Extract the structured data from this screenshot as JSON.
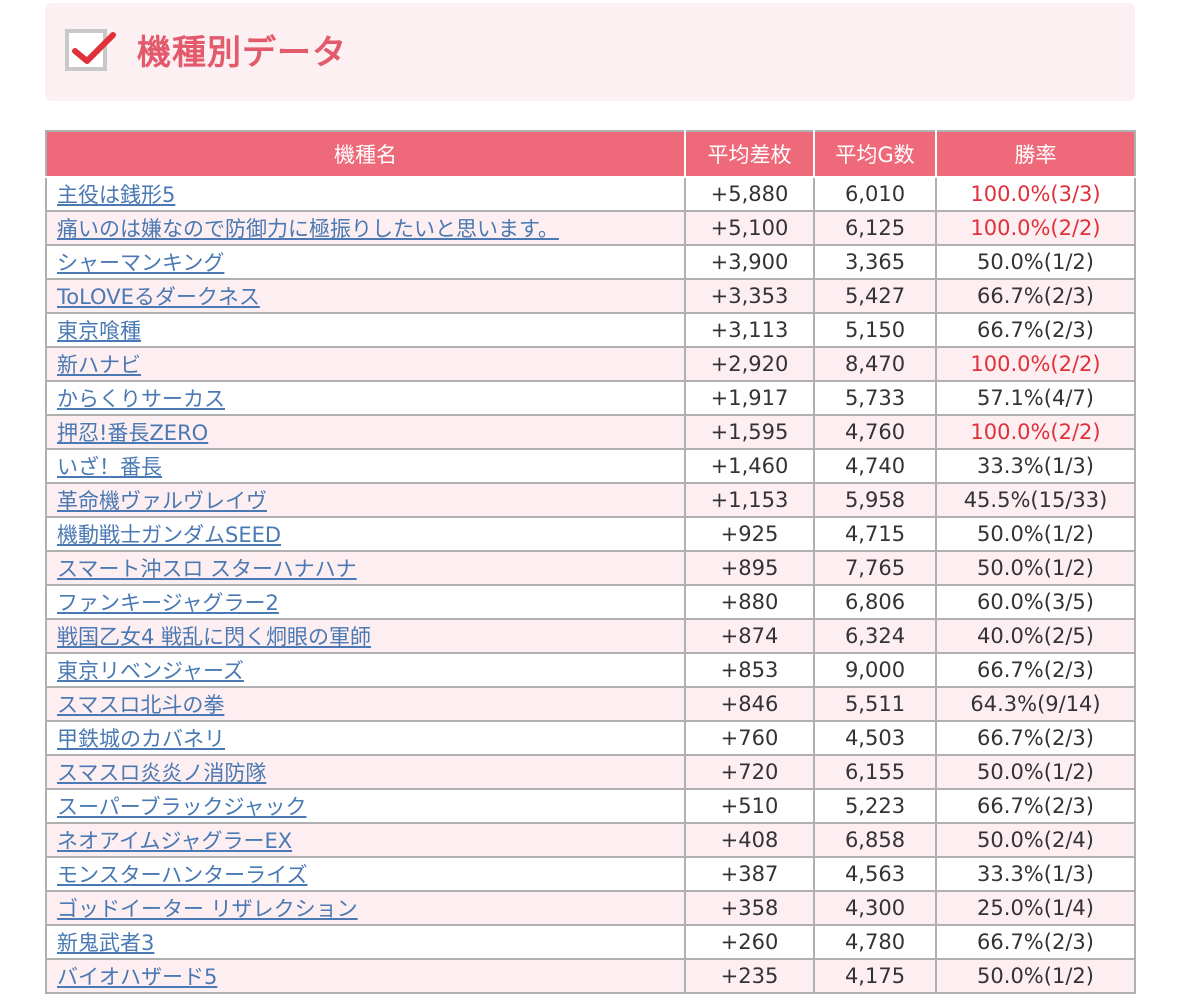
{
  "header": {
    "title": "機種別データ"
  },
  "table": {
    "columns": [
      "機種名",
      "平均差枚",
      "平均G数",
      "勝率"
    ],
    "rows": [
      {
        "name": "主役は銭形5",
        "diff": "+5,880",
        "games": "6,010",
        "win": "100.0%(3/3)",
        "full": true
      },
      {
        "name": "痛いのは嫌なので防御力に極振りしたいと思います。",
        "diff": "+5,100",
        "games": "6,125",
        "win": "100.0%(2/2)",
        "full": true
      },
      {
        "name": "シャーマンキング",
        "diff": "+3,900",
        "games": "3,365",
        "win": "50.0%(1/2)",
        "full": false
      },
      {
        "name": "ToLOVEるダークネス",
        "diff": "+3,353",
        "games": "5,427",
        "win": "66.7%(2/3)",
        "full": false
      },
      {
        "name": "東京喰種",
        "diff": "+3,113",
        "games": "5,150",
        "win": "66.7%(2/3)",
        "full": false
      },
      {
        "name": "新ハナビ",
        "diff": "+2,920",
        "games": "8,470",
        "win": "100.0%(2/2)",
        "full": true
      },
      {
        "name": "からくりサーカス",
        "diff": "+1,917",
        "games": "5,733",
        "win": "57.1%(4/7)",
        "full": false
      },
      {
        "name": "押忍!番長ZERO",
        "diff": "+1,595",
        "games": "4,760",
        "win": "100.0%(2/2)",
        "full": true
      },
      {
        "name": "いざ！番長",
        "diff": "+1,460",
        "games": "4,740",
        "win": "33.3%(1/3)",
        "full": false
      },
      {
        "name": "革命機ヴァルヴレイヴ",
        "diff": "+1,153",
        "games": "5,958",
        "win": "45.5%(15/33)",
        "full": false
      },
      {
        "name": "機動戦士ガンダムSEED",
        "diff": "+925",
        "games": "4,715",
        "win": "50.0%(1/2)",
        "full": false
      },
      {
        "name": "スマート沖スロ スターハナハナ",
        "diff": "+895",
        "games": "7,765",
        "win": "50.0%(1/2)",
        "full": false
      },
      {
        "name": "ファンキージャグラー2",
        "diff": "+880",
        "games": "6,806",
        "win": "60.0%(3/5)",
        "full": false
      },
      {
        "name": "戦国乙女4 戦乱に閃く炯眼の軍師",
        "diff": "+874",
        "games": "6,324",
        "win": "40.0%(2/5)",
        "full": false
      },
      {
        "name": "東京リベンジャーズ",
        "diff": "+853",
        "games": "9,000",
        "win": "66.7%(2/3)",
        "full": false
      },
      {
        "name": "スマスロ北斗の拳",
        "diff": "+846",
        "games": "5,511",
        "win": "64.3%(9/14)",
        "full": false
      },
      {
        "name": "甲鉄城のカバネリ",
        "diff": "+760",
        "games": "4,503",
        "win": "66.7%(2/3)",
        "full": false
      },
      {
        "name": "スマスロ炎炎ノ消防隊",
        "diff": "+720",
        "games": "6,155",
        "win": "50.0%(1/2)",
        "full": false
      },
      {
        "name": "スーパーブラックジャック",
        "diff": "+510",
        "games": "5,223",
        "win": "66.7%(2/3)",
        "full": false
      },
      {
        "name": "ネオアイムジャグラーEX",
        "diff": "+408",
        "games": "6,858",
        "win": "50.0%(2/4)",
        "full": false
      },
      {
        "name": "モンスターハンターライズ",
        "diff": "+387",
        "games": "4,563",
        "win": "33.3%(1/3)",
        "full": false
      },
      {
        "name": "ゴッドイーター リザレクション",
        "diff": "+358",
        "games": "4,300",
        "win": "25.0%(1/4)",
        "full": false
      },
      {
        "name": "新鬼武者3",
        "diff": "+260",
        "games": "4,780",
        "win": "66.7%(2/3)",
        "full": false
      },
      {
        "name": "バイオハザード5",
        "diff": "+235",
        "games": "4,175",
        "win": "50.0%(1/2)",
        "full": false
      }
    ]
  }
}
